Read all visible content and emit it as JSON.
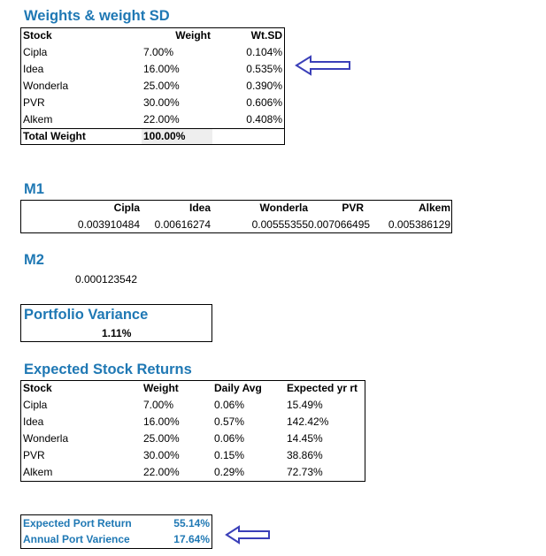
{
  "weights_sd": {
    "title": "Weights & weight SD",
    "headers": [
      "Stock",
      "Weight",
      "Wt.SD"
    ],
    "rows": [
      [
        "Cipla",
        "7.00%",
        "0.104%"
      ],
      [
        "Idea",
        "16.00%",
        "0.535%"
      ],
      [
        "Wonderla",
        "25.00%",
        "0.390%"
      ],
      [
        "PVR",
        "30.00%",
        "0.606%"
      ],
      [
        "Alkem",
        "22.00%",
        "0.408%"
      ]
    ],
    "total_label": "Total Weight",
    "total_value": "100.00%"
  },
  "m1": {
    "title": "M1",
    "headers": [
      "Cipla",
      "Idea",
      "Wonderla",
      "PVR",
      "Alkem"
    ],
    "values": [
      "0.003910484",
      "0.00616274",
      "0.00555355",
      "0.007066495",
      "0.005386129"
    ]
  },
  "m2": {
    "title": "M2",
    "value": "0.000123542"
  },
  "portfolio_variance": {
    "title": "Portfolio Variance",
    "value": "1.11%"
  },
  "expected_returns": {
    "title": "Expected Stock Returns",
    "headers": [
      "Stock",
      "Weight",
      "Daily Avg",
      "Expected yr rt"
    ],
    "rows": [
      [
        "Cipla",
        "7.00%",
        "0.06%",
        "15.49%"
      ],
      [
        "Idea",
        "16.00%",
        "0.57%",
        "142.42%"
      ],
      [
        "Wonderla",
        "25.00%",
        "0.06%",
        "14.45%"
      ],
      [
        "PVR",
        "30.00%",
        "0.15%",
        "38.86%"
      ],
      [
        "Alkem",
        "22.00%",
        "0.29%",
        "72.73%"
      ]
    ]
  },
  "summary": {
    "port_return_label": "Expected Port Return",
    "port_return_value": "55.14%",
    "port_variance_label": "Annual Port Varience",
    "port_variance_value": "17.64%"
  },
  "colors": {
    "title_blue": "#1f78b4",
    "arrow_blue": "#3a3fb8",
    "total_fill": "#eeeeee"
  },
  "icons": [
    "left-arrow-icon"
  ]
}
